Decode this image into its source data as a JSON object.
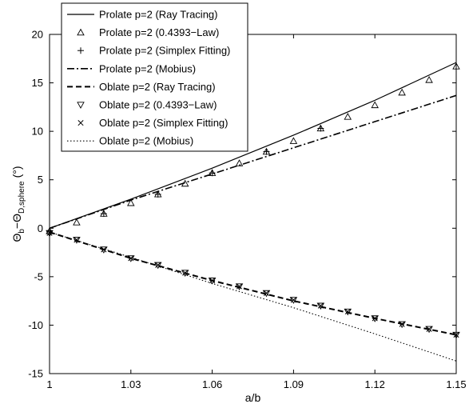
{
  "chart_data": {
    "type": "line",
    "xlabel": "a/b",
    "ylabel_main": "Θ",
    "ylabel_sub1": "b",
    "ylabel_mid": "−Θ",
    "ylabel_sub2": "D,sphere",
    "ylabel_unit": "(°)",
    "xlim": [
      1,
      1.15
    ],
    "ylim": [
      -15,
      20
    ],
    "xticks": [
      1,
      1.03,
      1.06,
      1.09,
      1.12,
      1.15
    ],
    "xtick_labels": [
      "1",
      "1.03",
      "1.06",
      "1.09",
      "1.12",
      "1.15"
    ],
    "yticks": [
      -15,
      -10,
      -5,
      0,
      5,
      10,
      15,
      20
    ],
    "ytick_labels": [
      "-15",
      "-10",
      "-5",
      "0",
      "5",
      "10",
      "15",
      "20"
    ],
    "grid": false,
    "legend_position": "top-left",
    "series": [
      {
        "name": "Prolate p=2 (Ray Tracing)",
        "style": "solid",
        "marker": "none",
        "x": [
          1,
          1.03,
          1.06,
          1.09,
          1.12,
          1.15
        ],
        "y": [
          0,
          3.0,
          6.2,
          9.6,
          13.2,
          17.1
        ]
      },
      {
        "name": "Prolate p=2 (0.4393−Law)",
        "style": "none",
        "marker": "triangle-up",
        "x": [
          1,
          1.01,
          1.02,
          1.03,
          1.04,
          1.05,
          1.06,
          1.07,
          1.08,
          1.09,
          1.1,
          1.11,
          1.12,
          1.13,
          1.14,
          1.15
        ],
        "y": [
          -0.3,
          0.6,
          1.5,
          2.6,
          3.5,
          4.6,
          5.7,
          6.7,
          7.9,
          9.0,
          10.3,
          11.5,
          12.7,
          14.0,
          15.3,
          16.7
        ]
      },
      {
        "name": "Prolate p=2 (Simplex Fitting)",
        "style": "none",
        "marker": "plus",
        "x": [
          1,
          1.02,
          1.04,
          1.06,
          1.08,
          1.1
        ],
        "y": [
          -0.3,
          1.5,
          3.5,
          5.7,
          7.9,
          10.3
        ]
      },
      {
        "name": "Prolate p=2 (Mobius)",
        "style": "dashdot",
        "marker": "none",
        "x": [
          1,
          1.03,
          1.06,
          1.09,
          1.12,
          1.15
        ],
        "y": [
          0,
          2.9,
          5.6,
          8.3,
          11.0,
          13.7
        ]
      },
      {
        "name": "Oblate p=2 (Ray Tracing)",
        "style": "dashed",
        "marker": "none",
        "x": [
          1,
          1.03,
          1.06,
          1.09,
          1.12,
          1.15
        ],
        "y": [
          -0.4,
          -3.1,
          -5.4,
          -7.5,
          -9.3,
          -11.0
        ]
      },
      {
        "name": "Oblate p=2 (0.4393−Law)",
        "style": "none",
        "marker": "triangle-down",
        "x": [
          1,
          1.01,
          1.02,
          1.03,
          1.04,
          1.05,
          1.06,
          1.07,
          1.08,
          1.09,
          1.1,
          1.11,
          1.12,
          1.13,
          1.14,
          1.15
        ],
        "y": [
          -0.5,
          -1.2,
          -2.2,
          -3.1,
          -3.8,
          -4.6,
          -5.4,
          -6.0,
          -6.7,
          -7.4,
          -8.0,
          -8.6,
          -9.3,
          -9.9,
          -10.4,
          -11.0
        ]
      },
      {
        "name": "Oblate p=2 (Simplex Fitting)",
        "style": "none",
        "marker": "cross",
        "x": [
          1,
          1.01,
          1.02,
          1.03,
          1.04,
          1.05,
          1.06,
          1.07,
          1.08,
          1.09,
          1.1,
          1.11,
          1.12,
          1.13,
          1.14,
          1.15
        ],
        "y": [
          -0.5,
          -1.2,
          -2.2,
          -3.1,
          -3.8,
          -4.6,
          -5.4,
          -6.0,
          -6.7,
          -7.4,
          -8.0,
          -8.6,
          -9.3,
          -9.9,
          -10.4,
          -11.0
        ]
      },
      {
        "name": "Oblate p=2 (Mobius)",
        "style": "dotted",
        "marker": "none",
        "x": [
          1,
          1.03,
          1.06,
          1.09,
          1.12,
          1.15
        ],
        "y": [
          -0.4,
          -3.0,
          -5.7,
          -8.2,
          -10.9,
          -13.7
        ]
      }
    ]
  }
}
